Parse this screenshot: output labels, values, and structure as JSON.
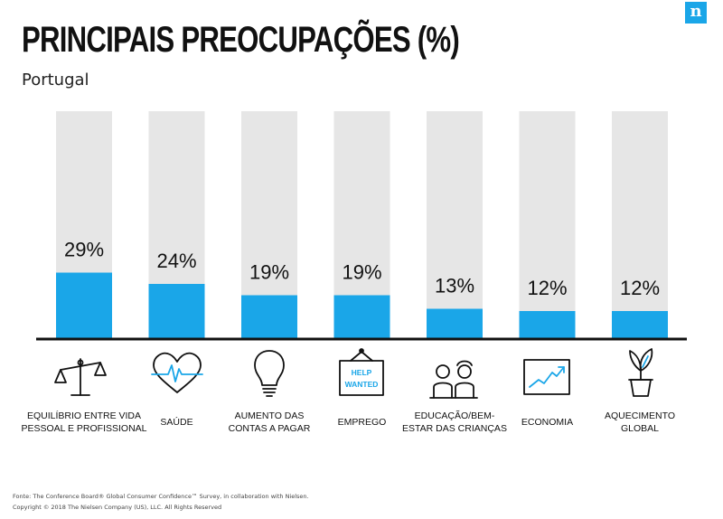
{
  "header": {
    "title": "PRINCIPAIS PREOCUPAÇÕES (%)",
    "subtitle": "Portugal",
    "logo_letter": "n"
  },
  "chart_data": {
    "type": "bar",
    "title": "PRINCIPAIS PREOCUPAÇÕES (%)",
    "subtitle": "Portugal",
    "categories": [
      [
        "EQUILÍBRIO ENTRE VIDA",
        "PESSOAL E PROFISSIONAL"
      ],
      [
        "SAÚDE"
      ],
      [
        "AUMENTO DAS",
        "CONTAS A PAGAR"
      ],
      [
        "EMPREGO"
      ],
      [
        "EDUCAÇÃO/BEM-",
        "ESTAR DAS CRIANÇAS"
      ],
      [
        "ECONOMIA"
      ],
      [
        "AQUECIMENTO",
        "GLOBAL"
      ]
    ],
    "values": [
      29,
      24,
      19,
      19,
      13,
      12,
      12
    ],
    "value_labels": [
      "29%",
      "24%",
      "19%",
      "19%",
      "13%",
      "12%",
      "12%"
    ],
    "icons": [
      "scale-icon",
      "heart-pulse-icon",
      "lightbulb-icon",
      "help-wanted-sign-icon",
      "children-icon",
      "chart-trend-icon",
      "plant-icon"
    ],
    "help_wanted_text": [
      "HELP",
      "WANTED"
    ],
    "ylim": [
      0,
      100
    ],
    "grid": false,
    "bar_color": "#1aa6e8",
    "track_color": "#e6e6e6"
  },
  "footer": {
    "source": "Fonte: The Conference Board® Global Consumer Confidence™ Survey, in collaboration with Nielsen.",
    "copyright": "Copyright © 2018 The Nielsen Company (US), LLC. All Rights Reserved"
  }
}
